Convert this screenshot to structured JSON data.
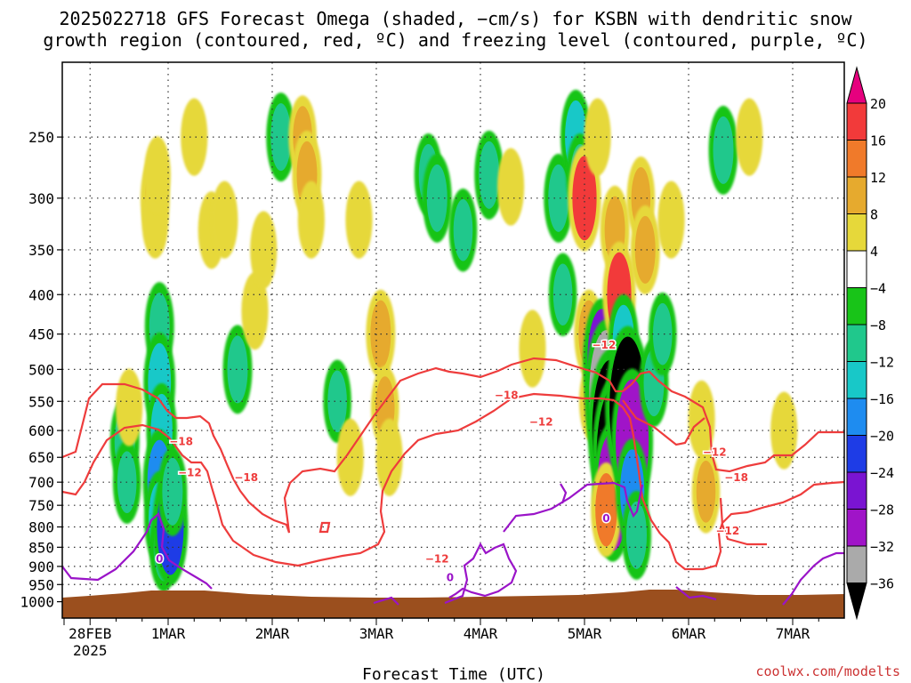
{
  "title": {
    "line1": "2025022718 GFS Forecast Omega (shaded, −cm/s) for KSBN with dendritic snow",
    "line2": "growth region (contoured, red, ºC) and freezing level (contoured, purple, ºC)"
  },
  "credit": "coolwx.com/modelts",
  "chart_data": {
    "type": "heatmap",
    "xlabel": "Forecast Time (UTC)",
    "ylabel": "",
    "x_ticks": [
      {
        "label": "28FEB",
        "sublabel": "2025",
        "hour": 6
      },
      {
        "label": "1MAR",
        "hour": 24
      },
      {
        "label": "2MAR",
        "hour": 48
      },
      {
        "label": "3MAR",
        "hour": 72
      },
      {
        "label": "4MAR",
        "hour": 96
      },
      {
        "label": "5MAR",
        "hour": 120
      },
      {
        "label": "6MAR",
        "hour": 144
      },
      {
        "label": "7MAR",
        "hour": 168
      }
    ],
    "x_range_hours": [
      0,
      180
    ],
    "y_axis": "pressure (hPa), log scale, inverted",
    "y_ticks": [
      250,
      300,
      350,
      400,
      450,
      500,
      550,
      600,
      650,
      700,
      750,
      800,
      850,
      900,
      950,
      1000
    ],
    "y_range": [
      200,
      1050
    ],
    "grid": true,
    "colorbar": {
      "ticks": [
        "20",
        "16",
        "12",
        "8",
        "4",
        "−4",
        "−8",
        "−12",
        "−16",
        "−20",
        "−24",
        "−28",
        "−32",
        "−36"
      ],
      "colors": [
        "#e6007e",
        "#f23a3a",
        "#f07a2a",
        "#e6aa2e",
        "#e6d83a",
        "#ffffff",
        "#18c418",
        "#20c88c",
        "#18c8c8",
        "#1e8cf0",
        "#1e3ce6",
        "#7a14d2",
        "#a014c8",
        "#aaaaaa",
        "#000000"
      ]
    },
    "omega_cells": [
      {
        "x": 14,
        "p": 620,
        "v": -10
      },
      {
        "x": 14.5,
        "p": 700,
        "v": -8
      },
      {
        "x": 15,
        "p": 560,
        "v": 6
      },
      {
        "x": 21,
        "p": 300,
        "v": 10
      },
      {
        "x": 21,
        "p": 320,
        "v": 6
      },
      {
        "x": 21.5,
        "p": 280,
        "v": 6
      },
      {
        "x": 22,
        "p": 440,
        "v": -10
      },
      {
        "x": 22,
        "p": 520,
        "v": -14
      },
      {
        "x": 22.5,
        "p": 600,
        "v": -12
      },
      {
        "x": 22,
        "p": 700,
        "v": -16
      },
      {
        "x": 22,
        "p": 780,
        "v": -12
      },
      {
        "x": 23,
        "p": 850,
        "v": -10
      },
      {
        "x": 24.5,
        "p": 800,
        "v": -20
      },
      {
        "x": 25,
        "p": 720,
        "v": -10
      },
      {
        "x": 30,
        "p": 250,
        "v": 6
      },
      {
        "x": 34,
        "p": 330,
        "v": 6
      },
      {
        "x": 37,
        "p": 320,
        "v": 6
      },
      {
        "x": 40,
        "p": 500,
        "v": -10
      },
      {
        "x": 44,
        "p": 420,
        "v": 6
      },
      {
        "x": 46,
        "p": 350,
        "v": 6
      },
      {
        "x": 50,
        "p": 250,
        "v": -10
      },
      {
        "x": 55,
        "p": 250,
        "v": 8
      },
      {
        "x": 56,
        "p": 280,
        "v": 10
      },
      {
        "x": 57,
        "p": 320,
        "v": 6
      },
      {
        "x": 63,
        "p": 550,
        "v": -8
      },
      {
        "x": 66,
        "p": 650,
        "v": 6
      },
      {
        "x": 68,
        "p": 320,
        "v": 6
      },
      {
        "x": 73,
        "p": 450,
        "v": 10
      },
      {
        "x": 74,
        "p": 560,
        "v": 8
      },
      {
        "x": 75,
        "p": 650,
        "v": 6
      },
      {
        "x": 84,
        "p": 280,
        "v": -8
      },
      {
        "x": 86,
        "p": 300,
        "v": -10
      },
      {
        "x": 92,
        "p": 330,
        "v": -8
      },
      {
        "x": 98,
        "p": 280,
        "v": -10
      },
      {
        "x": 103,
        "p": 290,
        "v": 6
      },
      {
        "x": 108,
        "p": 470,
        "v": 6
      },
      {
        "x": 114,
        "p": 300,
        "v": -10
      },
      {
        "x": 115,
        "p": 400,
        "v": -8
      },
      {
        "x": 118,
        "p": 250,
        "v": -12
      },
      {
        "x": 119,
        "p": 280,
        "v": -8
      },
      {
        "x": 120,
        "p": 300,
        "v": 16
      },
      {
        "x": 121,
        "p": 450,
        "v": 10
      },
      {
        "x": 122,
        "p": 550,
        "v": 8
      },
      {
        "x": 123,
        "p": 250,
        "v": 6
      },
      {
        "x": 124,
        "p": 490,
        "v": -24
      },
      {
        "x": 125,
        "p": 540,
        "v": -32
      },
      {
        "x": 126,
        "p": 600,
        "v": -36
      },
      {
        "x": 127,
        "p": 650,
        "v": -36
      },
      {
        "x": 126.5,
        "p": 720,
        "v": -28
      },
      {
        "x": 125,
        "p": 760,
        "v": 12
      },
      {
        "x": 127,
        "p": 330,
        "v": 10
      },
      {
        "x": 128,
        "p": 400,
        "v": 16
      },
      {
        "x": 129,
        "p": 460,
        "v": -12
      },
      {
        "x": 130,
        "p": 560,
        "v": -36
      },
      {
        "x": 131,
        "p": 620,
        "v": -30
      },
      {
        "x": 131,
        "p": 720,
        "v": -16
      },
      {
        "x": 132,
        "p": 820,
        "v": -10
      },
      {
        "x": 133,
        "p": 300,
        "v": 8
      },
      {
        "x": 134,
        "p": 350,
        "v": 10
      },
      {
        "x": 136,
        "p": 520,
        "v": -10
      },
      {
        "x": 138,
        "p": 450,
        "v": -8
      },
      {
        "x": 140,
        "p": 320,
        "v": 6
      },
      {
        "x": 147,
        "p": 580,
        "v": 6
      },
      {
        "x": 148,
        "p": 720,
        "v": 8
      },
      {
        "x": 152,
        "p": 260,
        "v": -10
      },
      {
        "x": 158,
        "p": 250,
        "v": 6
      },
      {
        "x": 166,
        "p": 600,
        "v": 6
      }
    ],
    "dgz_contours": [
      "−12",
      "−18"
    ],
    "freezing_contour": "0",
    "contour_labels": [
      {
        "text": "−18",
        "x": 27,
        "p": 620,
        "color": "red"
      },
      {
        "text": "−12",
        "x": 29,
        "p": 680,
        "color": "red"
      },
      {
        "text": "0",
        "x": 22,
        "p": 880,
        "color": "purple"
      },
      {
        "text": "−18",
        "x": 42,
        "p": 690,
        "color": "red"
      },
      {
        "text": "−12",
        "x": 86,
        "p": 880,
        "color": "red"
      },
      {
        "text": "−18",
        "x": 102,
        "p": 540,
        "color": "red"
      },
      {
        "text": "−12",
        "x": 110,
        "p": 585,
        "color": "red"
      },
      {
        "text": "0",
        "x": 89,
        "p": 930,
        "color": "purple"
      },
      {
        "text": "−12",
        "x": 124.5,
        "p": 465,
        "color": "red"
      },
      {
        "text": "−12",
        "x": 150,
        "p": 640,
        "color": "red"
      },
      {
        "text": "0",
        "x": 125,
        "p": 780,
        "color": "purple"
      },
      {
        "text": "−18",
        "x": 155,
        "p": 690,
        "color": "red"
      },
      {
        "text": "−12",
        "x": 153,
        "p": 810,
        "color": "red"
      }
    ]
  }
}
